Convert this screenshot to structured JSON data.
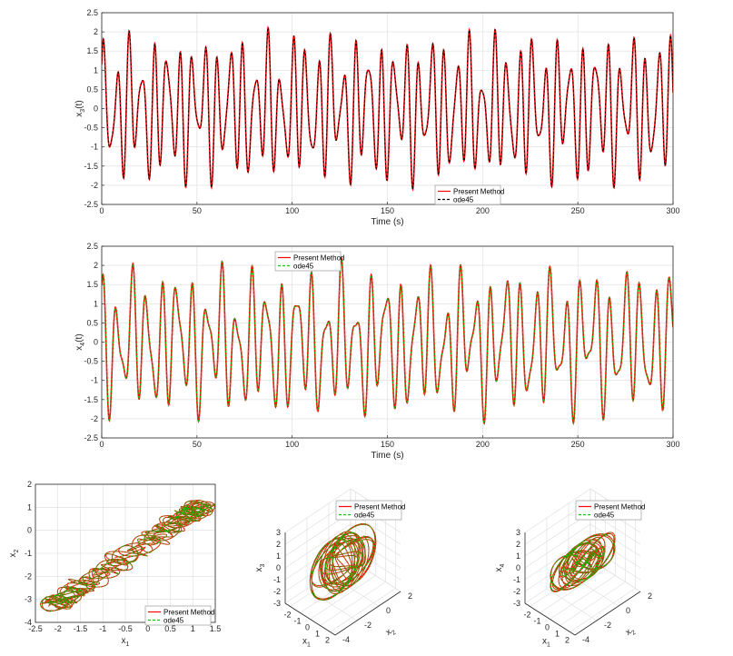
{
  "chart_data": [
    {
      "id": "x3",
      "type": "line",
      "xlabel": "Time (s)",
      "ylabel_main": "x",
      "ylabel_sub": "3",
      "ylabel_suffix": "(t)",
      "xlim": [
        0,
        300
      ],
      "ylim": [
        -2.5,
        2.5
      ],
      "xticks": [
        "0",
        "50",
        "100",
        "150",
        "200",
        "250",
        "300"
      ],
      "yticks": [
        "-2.5",
        "-2",
        "-1.5",
        "-1",
        "-0.5",
        "0",
        "0.5",
        "1",
        "1.5",
        "2",
        "2.5"
      ],
      "grid": true,
      "legend_position": "bottom-center",
      "series": [
        {
          "name": "Present Method",
          "color": "#ff0000",
          "style": "solid"
        },
        {
          "name": "ode45",
          "color": "#000000",
          "style": "dashed"
        }
      ],
      "signal": {
        "components": [
          [
            1.3,
            0.95,
            0.3
          ],
          [
            0.55,
            1.37,
            1.1
          ],
          [
            0.3,
            0.36,
            2.0
          ]
        ],
        "samples": 1800
      }
    },
    {
      "id": "x4",
      "type": "line",
      "xlabel": "Time (s)",
      "ylabel_main": "x",
      "ylabel_sub": "4",
      "ylabel_suffix": "(t)",
      "xlim": [
        0,
        300
      ],
      "ylim": [
        -2.5,
        2.5
      ],
      "xticks": [
        "0",
        "50",
        "100",
        "150",
        "200",
        "250",
        "300"
      ],
      "yticks": [
        "-2.5",
        "-2",
        "-1.5",
        "-1",
        "-0.5",
        "0",
        "0.5",
        "1",
        "1.5",
        "2",
        "2.5"
      ],
      "grid": true,
      "legend_position": "top-left",
      "series": [
        {
          "name": "Present Method",
          "color": "#ff0000",
          "style": "solid"
        },
        {
          "name": "ode45",
          "color": "#00cc00",
          "style": "dashed"
        }
      ],
      "signal": {
        "components": [
          [
            1.25,
            0.8,
            1.4
          ],
          [
            0.6,
            1.21,
            0.2
          ],
          [
            0.35,
            0.29,
            2.7
          ]
        ],
        "samples": 1800
      }
    },
    {
      "id": "phase-x1-x2",
      "type": "line",
      "xlabel_main": "x",
      "xlabel_sub": "1",
      "ylabel_main": "x",
      "ylabel_sub": "2",
      "xlim": [
        -2.5,
        1.5
      ],
      "ylim": [
        -4,
        2
      ],
      "xticks": [
        "-2.5",
        "-2",
        "-1.5",
        "-1",
        "-0.5",
        "0",
        "0.5",
        "1",
        "1.5"
      ],
      "yticks": [
        "-4",
        "-3",
        "-2",
        "-1",
        "0",
        "1",
        "2"
      ],
      "grid": true,
      "legend_position": "bottom-right",
      "series": [
        {
          "name": "Present Method",
          "color": "#ff0000",
          "style": "solid"
        },
        {
          "name": "ode45",
          "color": "#00cc00",
          "style": "dashed"
        }
      ]
    },
    {
      "id": "phase-3d-x3",
      "type": "line",
      "xlabel_main": "x",
      "xlabel_sub": "1",
      "ylabel_main": "x",
      "ylabel_sub": "2",
      "zlabel_main": "x",
      "zlabel_sub": "3",
      "xticks": [
        "-2",
        "-1",
        "0",
        "1",
        "2"
      ],
      "yticks": [
        "-4",
        "-2",
        "0",
        "2"
      ],
      "zticks": [
        "-3",
        "-2",
        "-1",
        "0",
        "1",
        "2",
        "3"
      ],
      "grid": true,
      "legend_position": "top-left",
      "series": [
        {
          "name": "Present Method",
          "color": "#ff0000",
          "style": "solid"
        },
        {
          "name": "ode45",
          "color": "#00cc00",
          "style": "dashed"
        }
      ]
    },
    {
      "id": "phase-3d-x4",
      "type": "line",
      "xlabel_main": "x",
      "xlabel_sub": "1",
      "ylabel_main": "x",
      "ylabel_sub": "2",
      "zlabel_main": "x",
      "zlabel_sub": "4",
      "xticks": [
        "-2",
        "-1",
        "0",
        "1",
        "2"
      ],
      "yticks": [
        "-4",
        "-2",
        "0",
        "2"
      ],
      "zticks": [
        "-3",
        "-2",
        "-1",
        "0",
        "1",
        "2",
        "3"
      ],
      "grid": true,
      "legend_position": "top-left",
      "series": [
        {
          "name": "Present Method",
          "color": "#ff0000",
          "style": "solid"
        },
        {
          "name": "ode45",
          "color": "#00cc00",
          "style": "dashed"
        }
      ]
    }
  ]
}
